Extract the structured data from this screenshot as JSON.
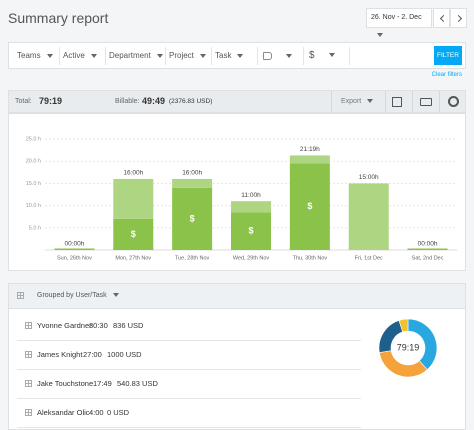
{
  "header": {
    "title": "Summary report",
    "date_range": "26. Nov - 2. Dec"
  },
  "filters": [
    "Teams",
    "Active",
    "Department",
    "Project",
    "Task",
    "$"
  ],
  "filter_button": "FILTER",
  "clear_filters": "Clear filters",
  "summary": {
    "total_label": "Total:",
    "total": "79:19",
    "billable_label": "Billable:",
    "billable": "49:49",
    "billable_amount": "(2376.83 USD)",
    "export": "Export"
  },
  "chart_data": [
    {
      "type": "bar",
      "stacked": true,
      "categories": [
        "Sun, 26th Nov",
        "Mon, 27th Nov",
        "Tue, 28th Nov",
        "Wed, 29th Nov",
        "Thu, 30th Nov",
        "Fri, 1st Dec",
        "Sat, 2nd Dec"
      ],
      "series": [
        {
          "color": "#8bc34a",
          "values": [
            0,
            7,
            14,
            8.5,
            19.5,
            0,
            0
          ]
        },
        {
          "color": "#aed581",
          "values": [
            0,
            9,
            2,
            2.5,
            1.8,
            15,
            0
          ]
        }
      ],
      "totals": {
        "values": [
          0,
          16,
          16,
          11,
          21.3,
          15,
          0
        ],
        "value_labels": [
          "00:00h",
          "16:00h",
          "16:00h",
          "11:00h",
          "21:19h",
          "15:00h",
          "00:00h"
        ]
      },
      "billable_symbol": "$",
      "ylim": [
        0,
        25
      ],
      "yticks": [
        {
          "value": 5,
          "label": "5.0 h"
        },
        {
          "value": 10,
          "label": "10.0 h"
        },
        {
          "value": 15,
          "label": "15.0 h"
        },
        {
          "value": 20,
          "label": "20.0 h"
        },
        {
          "value": 25,
          "label": "25.0 h"
        }
      ],
      "grid": true
    },
    {
      "type": "pie",
      "donut": true,
      "center_label": "79:19",
      "values": [
        30.5,
        27,
        17.8,
        4
      ],
      "colors": [
        "#29a8e0",
        "#f5a23a",
        "#1f5f8b",
        "#f2c12e"
      ]
    }
  ],
  "groups": {
    "header": "Grouped by User/Task",
    "rows": [
      [
        "Yvonne Gardner",
        "30:30",
        "836 USD"
      ],
      [
        "James Knight",
        "27:00",
        "1000 USD"
      ],
      [
        "Jake Touchstone",
        "17:49",
        "540.83 USD"
      ],
      [
        "Aleksandar Olic",
        "4:00",
        "0 USD"
      ]
    ]
  }
}
